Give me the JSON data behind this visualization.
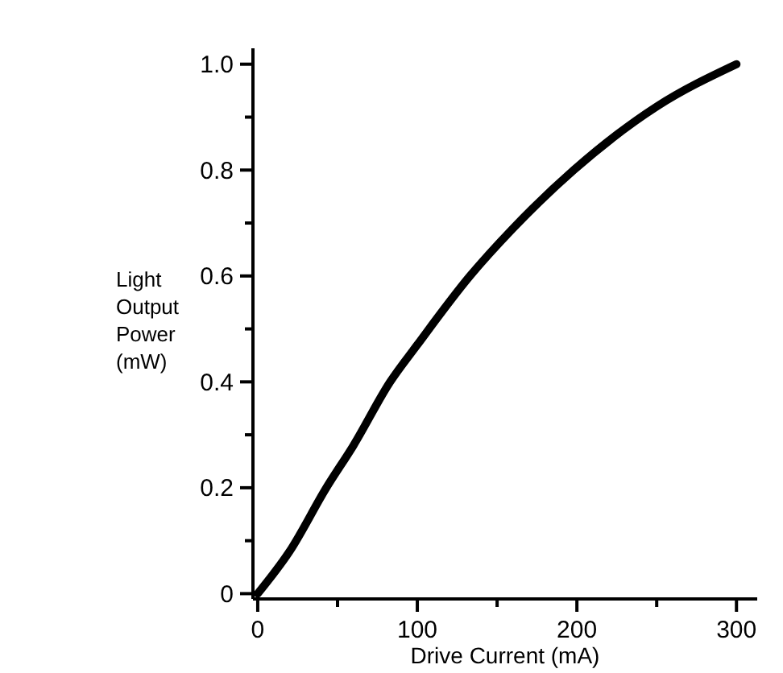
{
  "chart_data": {
    "type": "line",
    "xlabel": "Drive Current (mA)",
    "ylabel": "Light Output Power (mW)",
    "xlim": [
      -3,
      313
    ],
    "ylim": [
      -0.01,
      1.03
    ],
    "xticks": [
      0,
      {
        "value": 50,
        "label": null
      },
      100,
      {
        "value": 150,
        "label": null
      },
      200,
      {
        "value": 250,
        "label": null
      },
      300
    ],
    "yticks": [
      0,
      {
        "value": 0.1,
        "label": null
      },
      {
        "value": 0.2,
        "label": "0.2"
      },
      {
        "value": 0.3,
        "label": null
      },
      {
        "value": 0.4,
        "label": "0.4"
      },
      {
        "value": 0.5,
        "label": null
      },
      {
        "value": 0.6,
        "label": "0.6"
      },
      {
        "value": 0.7,
        "label": null
      },
      {
        "value": 0.8,
        "label": "0.8"
      },
      {
        "value": 0.9,
        "label": null
      },
      {
        "value": 1,
        "label": "1.0"
      }
    ],
    "marker": "none",
    "line_style": "solid",
    "grid": false,
    "series": [
      {
        "color": "#000000",
        "x": [
          0,
          20,
          43,
          60,
          83,
          100,
          133,
          160,
          198,
          250,
          300
        ],
        "values": [
          0,
          0.08,
          0.2,
          0.28,
          0.4,
          0.47,
          0.6,
          0.69,
          0.8,
          0.92,
          1.0
        ]
      }
    ]
  }
}
